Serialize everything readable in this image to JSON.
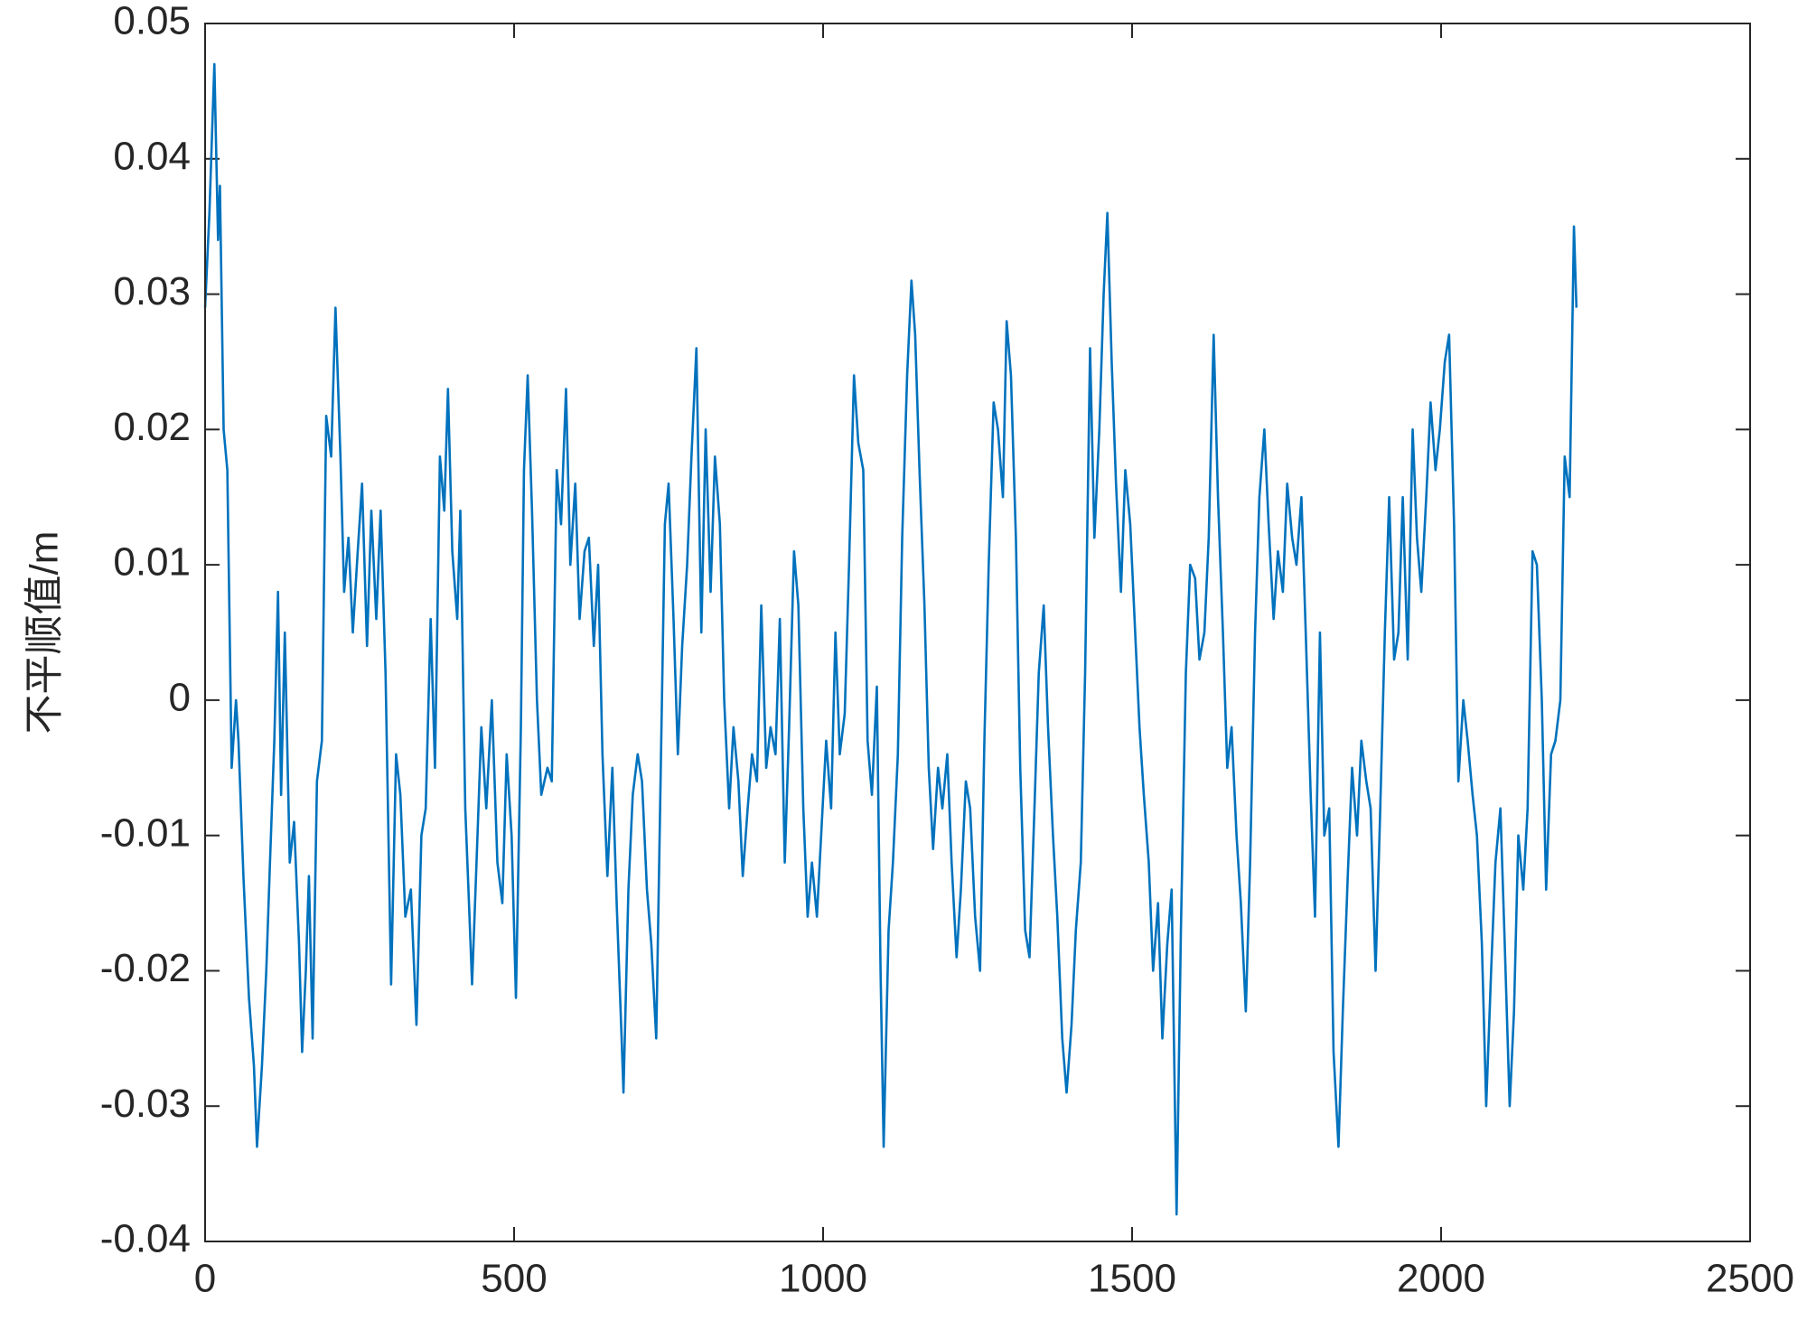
{
  "chart_data": {
    "type": "line",
    "y_label": "不平顺值/m",
    "xlim": [
      0,
      2500
    ],
    "ylim": [
      -0.04,
      0.05
    ],
    "xticks": [
      0,
      500,
      1000,
      1500,
      2000,
      2500
    ],
    "yticks": [
      -0.04,
      -0.03,
      -0.02,
      -0.01,
      0,
      0.01,
      0.02,
      0.03,
      0.04,
      0.05
    ],
    "grid": false,
    "series": [
      {
        "color": "#0072bd",
        "x": [
          0,
          7,
          15,
          21,
          24,
          30,
          36,
          43,
          50,
          54,
          62,
          71,
          79,
          84,
          92,
          99,
          105,
          112,
          118,
          123,
          129,
          137,
          144,
          152,
          157,
          163,
          168,
          174,
          181,
          189,
          196,
          204,
          211,
          219,
          225,
          232,
          239,
          247,
          254,
          262,
          269,
          277,
          284,
          292,
          301,
          309,
          316,
          324,
          333,
          342,
          350,
          357,
          365,
          372,
          380,
          387,
          393,
          400,
          408,
          413,
          421,
          427,
          432,
          440,
          447,
          455,
          464,
          473,
          481,
          488,
          496,
          503,
          511,
          516,
          522,
          529,
          537,
          544,
          554,
          561,
          569,
          576,
          584,
          591,
          599,
          606,
          614,
          621,
          629,
          636,
          643,
          651,
          659,
          666,
          674,
          677,
          685,
          692,
          700,
          707,
          715,
          722,
          730,
          737,
          744,
          750,
          758,
          765,
          772,
          780,
          787,
          795,
          803,
          810,
          818,
          825,
          833,
          840,
          848,
          855,
          863,
          870,
          878,
          885,
          893,
          900,
          908,
          915,
          923,
          930,
          938,
          945,
          953,
          960,
          968,
          975,
          982,
          990,
          998,
          1005,
          1013,
          1020,
          1027,
          1035,
          1042,
          1050,
          1057,
          1065,
          1072,
          1079,
          1087,
          1093,
          1098,
          1106,
          1113,
          1121,
          1128,
          1136,
          1143,
          1149,
          1156,
          1164,
          1171,
          1178,
          1186,
          1193,
          1201,
          1208,
          1216,
          1223,
          1231,
          1238,
          1246,
          1254,
          1261,
          1268,
          1276,
          1283,
          1291,
          1297,
          1304,
          1312,
          1319,
          1327,
          1334,
          1342,
          1349,
          1357,
          1364,
          1372,
          1379,
          1387,
          1394,
          1402,
          1409,
          1417,
          1424,
          1432,
          1439,
          1447,
          1454,
          1460,
          1467,
          1474,
          1482,
          1489,
          1497,
          1504,
          1512,
          1519,
          1527,
          1534,
          1542,
          1549,
          1557,
          1564,
          1572,
          1579,
          1587,
          1594,
          1602,
          1609,
          1617,
          1624,
          1632,
          1639,
          1647,
          1654,
          1661,
          1669,
          1676,
          1684,
          1691,
          1699,
          1706,
          1714,
          1721,
          1729,
          1736,
          1744,
          1751,
          1759,
          1766,
          1774,
          1781,
          1789,
          1796,
          1804,
          1811,
          1819,
          1826,
          1834,
          1841,
          1849,
          1856,
          1864,
          1871,
          1879,
          1886,
          1894,
          1901,
          1909,
          1916,
          1924,
          1931,
          1938,
          1946,
          1954,
          1961,
          1968,
          1976,
          1983,
          1991,
          1998,
          2006,
          2013,
          2021,
          2028,
          2036,
          2043,
          2051,
          2058,
          2066,
          2073,
          2081,
          2088,
          2096,
          2103,
          2111,
          2118,
          2125,
          2133,
          2140,
          2148,
          2155,
          2163,
          2170,
          2178,
          2185,
          2193,
          2200,
          2208,
          2215,
          2219
        ],
        "values": [
          0.029,
          0.036,
          0.047,
          0.034,
          0.038,
          0.02,
          0.017,
          -0.005,
          0.0,
          -0.003,
          -0.013,
          -0.022,
          -0.027,
          -0.033,
          -0.027,
          -0.02,
          -0.012,
          -0.003,
          0.008,
          -0.007,
          0.005,
          -0.012,
          -0.009,
          -0.018,
          -0.026,
          -0.02,
          -0.013,
          -0.025,
          -0.006,
          -0.003,
          0.021,
          0.018,
          0.029,
          0.018,
          0.008,
          0.012,
          0.005,
          0.011,
          0.016,
          0.004,
          0.014,
          0.006,
          0.014,
          0.002,
          -0.021,
          -0.004,
          -0.007,
          -0.016,
          -0.014,
          -0.024,
          -0.01,
          -0.008,
          0.006,
          -0.005,
          0.018,
          0.014,
          0.023,
          0.011,
          0.006,
          0.014,
          -0.008,
          -0.015,
          -0.021,
          -0.011,
          -0.002,
          -0.008,
          0.0,
          -0.012,
          -0.015,
          -0.004,
          -0.01,
          -0.022,
          -0.002,
          0.017,
          0.024,
          0.014,
          0.0,
          -0.007,
          -0.005,
          -0.006,
          0.017,
          0.013,
          0.023,
          0.01,
          0.016,
          0.006,
          0.011,
          0.012,
          0.004,
          0.01,
          -0.004,
          -0.013,
          -0.005,
          -0.015,
          -0.025,
          -0.029,
          -0.014,
          -0.007,
          -0.004,
          -0.006,
          -0.014,
          -0.018,
          -0.025,
          -0.006,
          0.013,
          0.016,
          0.006,
          -0.004,
          0.004,
          0.01,
          0.018,
          0.026,
          0.005,
          0.02,
          0.008,
          0.018,
          0.013,
          0.0,
          -0.008,
          -0.002,
          -0.006,
          -0.013,
          -0.008,
          -0.004,
          -0.006,
          0.007,
          -0.005,
          -0.002,
          -0.004,
          0.006,
          -0.012,
          -0.002,
          0.011,
          0.007,
          -0.008,
          -0.016,
          -0.012,
          -0.016,
          -0.009,
          -0.003,
          -0.008,
          0.005,
          -0.004,
          -0.001,
          0.01,
          0.024,
          0.019,
          0.017,
          -0.003,
          -0.007,
          0.001,
          -0.02,
          -0.033,
          -0.017,
          -0.012,
          -0.004,
          0.012,
          0.024,
          0.031,
          0.027,
          0.017,
          0.007,
          -0.005,
          -0.011,
          -0.005,
          -0.008,
          -0.004,
          -0.012,
          -0.019,
          -0.014,
          -0.006,
          -0.008,
          -0.016,
          -0.02,
          -0.003,
          0.01,
          0.022,
          0.02,
          0.015,
          0.028,
          0.024,
          0.012,
          -0.005,
          -0.017,
          -0.019,
          -0.008,
          0.002,
          0.007,
          -0.002,
          -0.01,
          -0.016,
          -0.025,
          -0.029,
          -0.024,
          -0.017,
          -0.012,
          0.002,
          0.026,
          0.012,
          0.02,
          0.03,
          0.036,
          0.025,
          0.016,
          0.008,
          0.017,
          0.013,
          0.006,
          -0.002,
          -0.007,
          -0.012,
          -0.02,
          -0.015,
          -0.025,
          -0.018,
          -0.014,
          -0.038,
          -0.017,
          0.002,
          0.01,
          0.009,
          0.003,
          0.005,
          0.012,
          0.027,
          0.015,
          0.005,
          -0.005,
          -0.002,
          -0.01,
          -0.015,
          -0.023,
          -0.012,
          0.005,
          0.015,
          0.02,
          0.013,
          0.006,
          0.011,
          0.008,
          0.016,
          0.012,
          0.01,
          0.015,
          0.005,
          -0.007,
          -0.016,
          0.005,
          -0.01,
          -0.008,
          -0.026,
          -0.033,
          -0.023,
          -0.013,
          -0.005,
          -0.01,
          -0.003,
          -0.006,
          -0.008,
          -0.02,
          -0.009,
          0.005,
          0.015,
          0.003,
          0.005,
          0.015,
          0.003,
          0.02,
          0.012,
          0.008,
          0.015,
          0.022,
          0.017,
          0.02,
          0.025,
          0.027,
          0.013,
          -0.006,
          0.0,
          -0.003,
          -0.007,
          -0.01,
          -0.018,
          -0.03,
          -0.02,
          -0.012,
          -0.008,
          -0.018,
          -0.03,
          -0.023,
          -0.01,
          -0.014,
          -0.008,
          0.011,
          0.01,
          0.0,
          -0.014,
          -0.004,
          -0.003,
          0.0,
          0.018,
          0.015,
          0.035,
          0.029
        ]
      }
    ]
  }
}
